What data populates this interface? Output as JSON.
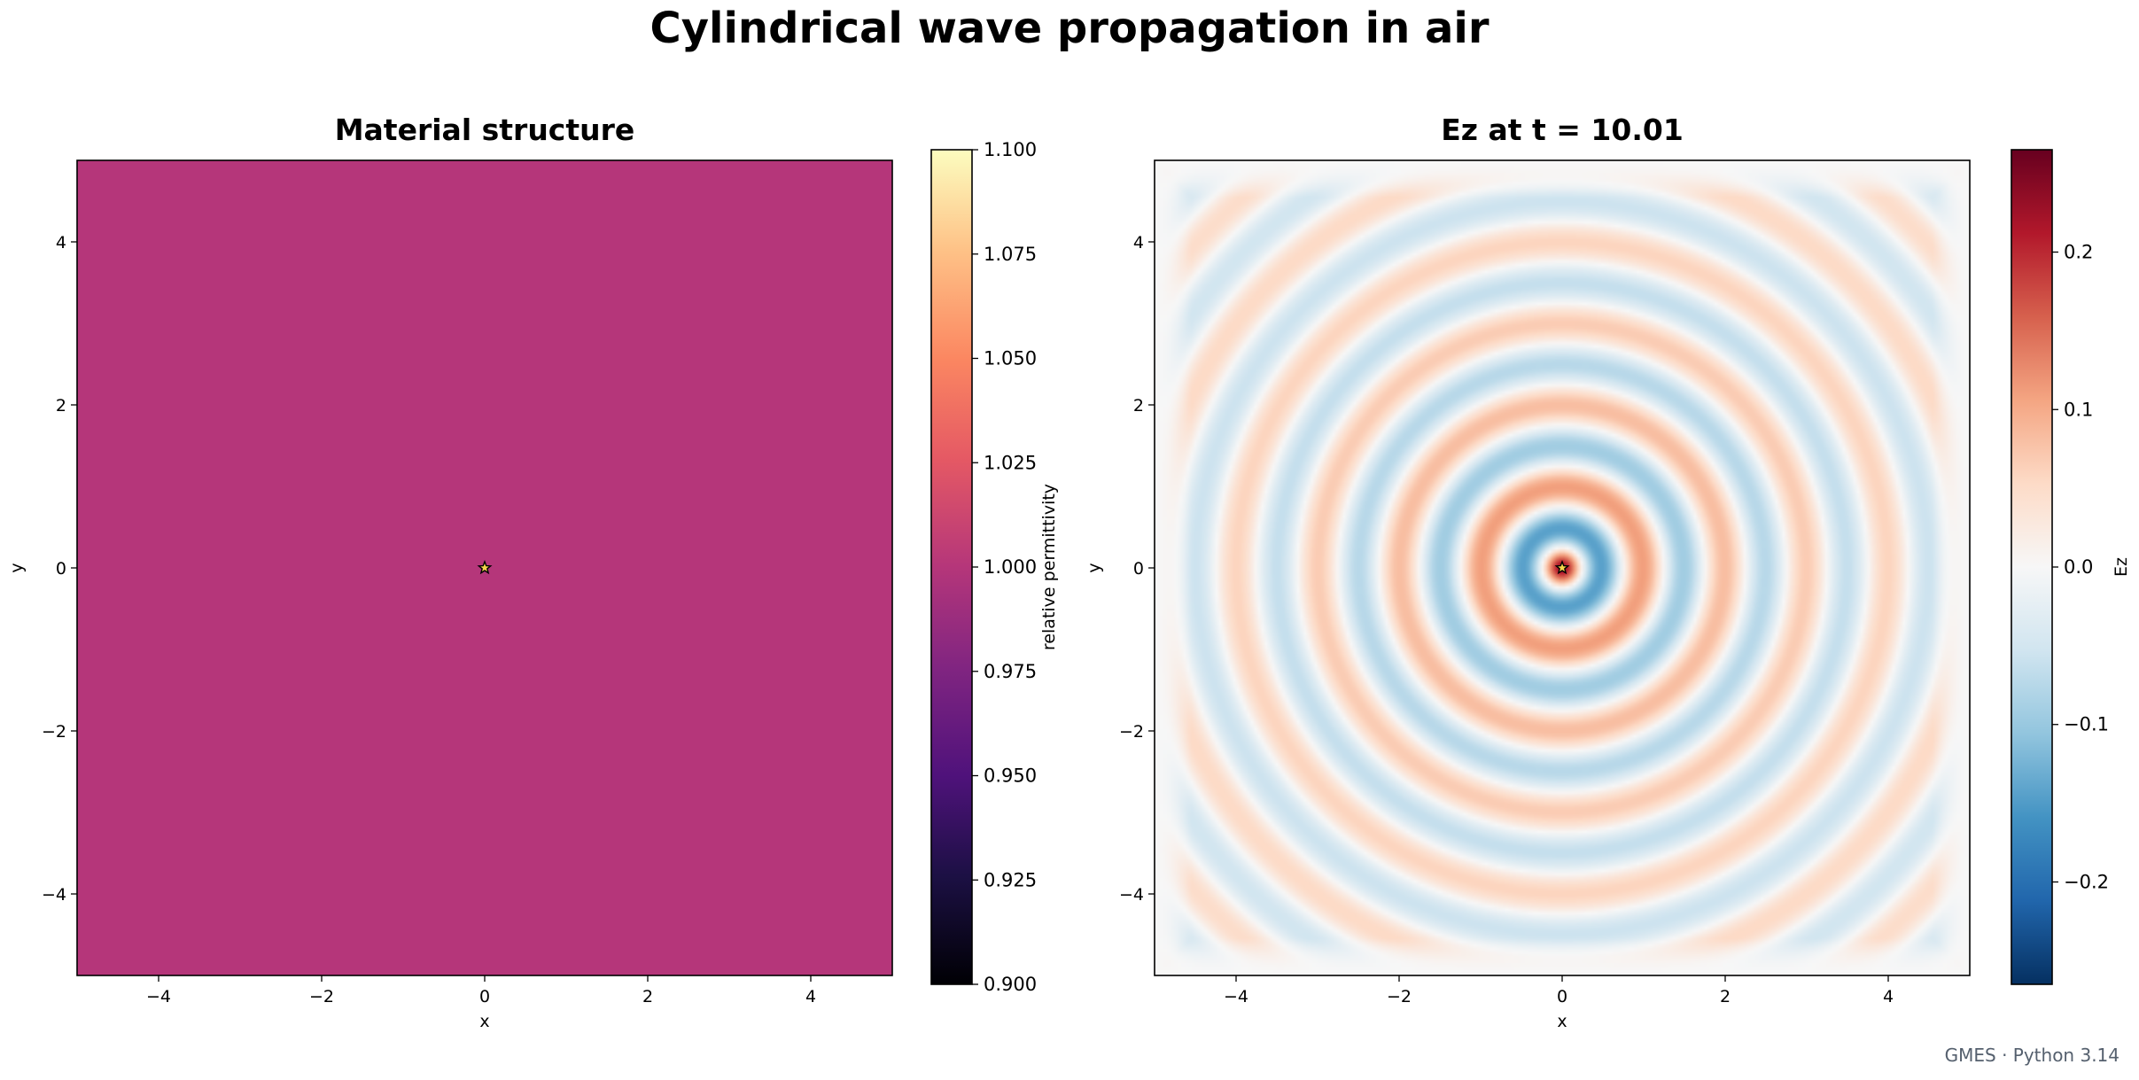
{
  "figure": {
    "title": "Cylindrical wave propagation in air",
    "footer": "GMES · Python 3.14"
  },
  "chart_data": [
    {
      "type": "heatmap",
      "title": "Material structure",
      "xlabel": "x",
      "ylabel": "y",
      "xlim": [
        -5,
        5
      ],
      "ylim": [
        -5,
        5
      ],
      "x_ticks": [
        -4,
        -2,
        0,
        2,
        4
      ],
      "y_ticks": [
        -4,
        -2,
        0,
        2,
        4
      ],
      "x_tick_labels": [
        "−4",
        "−2",
        "0",
        "2",
        "4"
      ],
      "y_tick_labels": [
        "−4",
        "−2",
        "0",
        "2",
        "4"
      ],
      "field": "uniform",
      "value": 1.0,
      "source_marker": {
        "symbol": "star",
        "x": 0,
        "y": 0
      },
      "colorbar": {
        "label": "relative permittivity",
        "colormap": "magma",
        "range": [
          0.9,
          1.1
        ],
        "ticks": [
          0.9,
          0.925,
          0.95,
          0.975,
          1.0,
          1.025,
          1.05,
          1.075,
          1.1
        ],
        "tick_labels": [
          "0.900",
          "0.925",
          "0.950",
          "0.975",
          "1.000",
          "1.025",
          "1.050",
          "1.075",
          "1.100"
        ]
      },
      "grid": false
    },
    {
      "type": "heatmap",
      "title": "Ez at t = 10.01",
      "xlabel": "x",
      "ylabel": "y",
      "xlim": [
        -5,
        5
      ],
      "ylim": [
        -5,
        5
      ],
      "x_ticks": [
        -4,
        -2,
        0,
        2,
        4
      ],
      "y_ticks": [
        -4,
        -2,
        0,
        2,
        4
      ],
      "x_tick_labels": [
        "−4",
        "−2",
        "0",
        "2",
        "4"
      ],
      "y_tick_labels": [
        "−4",
        "−2",
        "0",
        "2",
        "4"
      ],
      "field": "cylindrical_wave",
      "wavelength": 1.0,
      "center": [
        0,
        0
      ],
      "peak_value": 0.26,
      "source_marker": {
        "symbol": "star",
        "x": 0,
        "y": 0
      },
      "colorbar": {
        "label": "Ez",
        "colormap": "RdBu_r",
        "range": [
          -0.265,
          0.265
        ],
        "ticks": [
          -0.2,
          -0.1,
          0.0,
          0.1,
          0.2
        ],
        "tick_labels": [
          "−0.2",
          "−0.1",
          "0.0",
          "0.1",
          "0.2"
        ]
      },
      "grid": false
    }
  ]
}
